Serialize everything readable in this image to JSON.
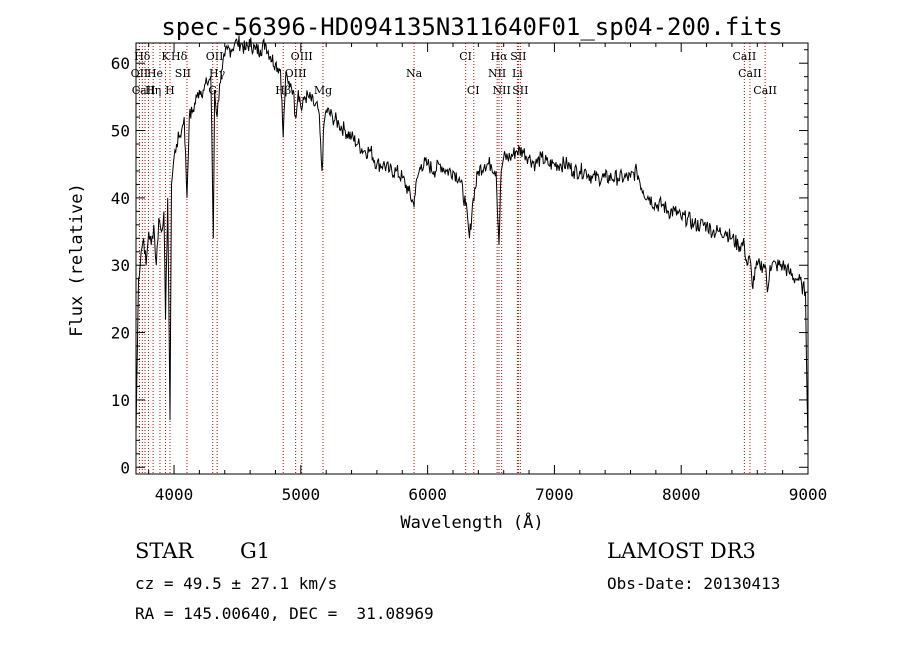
{
  "chart_data": {
    "type": "line",
    "title": "spec-56396-HD094135N311640F01_sp04-200.fits",
    "xlabel": "Wavelength (Å)",
    "ylabel": "Flux (relative)",
    "xlim": [
      3700,
      9000
    ],
    "ylim": [
      -1,
      63
    ],
    "x_ticks": [
      4000,
      5000,
      6000,
      7000,
      8000,
      9000
    ],
    "y_ticks": [
      0,
      10,
      20,
      30,
      40,
      50,
      60
    ],
    "grid": false,
    "series": [
      {
        "x": [
          3700,
          3720,
          3740,
          3760,
          3780,
          3800,
          3820,
          3840,
          3860,
          3880,
          3900,
          3920,
          3933,
          3950,
          3968,
          3980,
          4000,
          4020,
          4040,
          4060,
          4080,
          4102,
          4120,
          4150,
          4180,
          4200,
          4230,
          4260,
          4290,
          4310,
          4320,
          4340,
          4360,
          4380,
          4400,
          4420,
          4450,
          4480,
          4500,
          4530,
          4560,
          4600,
          4640,
          4680,
          4720,
          4760,
          4800,
          4840,
          4861,
          4880,
          4900,
          4920,
          4940,
          4957,
          4980,
          5007,
          5030,
          5060,
          5100,
          5140,
          5167,
          5183,
          5200,
          5250,
          5300,
          5350,
          5400,
          5450,
          5500,
          5550,
          5600,
          5650,
          5700,
          5750,
          5800,
          5850,
          5890,
          5896,
          5920,
          5950,
          6000,
          6050,
          6100,
          6150,
          6200,
          6250,
          6300,
          6330,
          6360,
          6400,
          6450,
          6500,
          6540,
          6563,
          6580,
          6600,
          6650,
          6700,
          6750,
          6800,
          6850,
          6900,
          6950,
          7000,
          7050,
          7100,
          7150,
          7200,
          7250,
          7300,
          7350,
          7400,
          7450,
          7500,
          7550,
          7600,
          7650,
          7700,
          7750,
          7800,
          7850,
          7900,
          7950,
          8000,
          8050,
          8100,
          8150,
          8200,
          8250,
          8300,
          8350,
          8400,
          8450,
          8498,
          8520,
          8542,
          8560,
          8600,
          8620,
          8662,
          8680,
          8700,
          8750,
          8800,
          8850,
          8900,
          8920,
          8950,
          8980,
          9000
        ],
        "y": [
          5,
          28,
          32,
          34,
          30,
          35,
          33,
          36,
          30,
          37,
          35,
          38,
          22,
          40,
          7,
          42,
          46,
          48,
          49,
          50,
          52,
          40,
          52,
          53,
          55,
          56,
          56,
          57,
          58,
          34,
          56,
          52,
          57,
          59,
          61,
          62,
          62,
          63,
          63,
          63,
          62,
          63,
          62,
          62,
          63,
          61,
          60,
          59,
          49,
          58,
          57,
          57,
          56,
          52,
          56,
          53,
          55,
          55,
          54,
          53,
          44,
          51,
          53,
          52,
          51,
          50,
          49,
          48,
          47,
          47,
          45,
          45,
          44,
          44,
          43,
          41,
          39,
          40,
          43,
          45,
          45,
          44,
          45,
          44,
          44,
          43,
          39,
          34,
          40,
          44,
          45,
          45,
          44,
          33,
          44,
          46,
          46,
          47,
          47,
          46,
          45,
          46,
          45,
          45,
          45,
          45,
          44,
          44,
          44,
          43,
          43,
          43,
          43,
          43,
          43,
          43,
          44,
          41,
          40,
          39,
          39,
          38,
          38,
          37,
          37,
          36,
          36,
          36,
          35,
          35,
          35,
          34,
          33,
          33,
          30,
          31,
          27,
          30,
          30,
          30,
          26,
          30,
          30,
          30,
          29,
          28,
          28,
          27,
          26,
          3
        ]
      }
    ],
    "spectral_lines": [
      {
        "label": "Hδ",
        "wavelength": 3750,
        "row": 0
      },
      {
        "label": "K",
        "wavelength": 3933,
        "row": 0
      },
      {
        "label": "Hδ",
        "wavelength": 4040,
        "row": 0
      },
      {
        "label": "OII",
        "wavelength": 4320,
        "row": 0
      },
      {
        "label": "OIII",
        "wavelength": 5007,
        "row": 0
      },
      {
        "label": "CI",
        "wavelength": 6300,
        "row": 0
      },
      {
        "label": "Hα",
        "wavelength": 6563,
        "row": 0
      },
      {
        "label": "SII",
        "wavelength": 6716,
        "row": 0
      },
      {
        "label": "CaII",
        "wavelength": 8498,
        "row": 0
      },
      {
        "label": "OII",
        "wavelength": 3727,
        "row": 1
      },
      {
        "label": "He",
        "wavelength": 3850,
        "row": 1
      },
      {
        "label": "SII",
        "wavelength": 4070,
        "row": 1
      },
      {
        "label": "Hγ",
        "wavelength": 4340,
        "row": 1
      },
      {
        "label": "OIII",
        "wavelength": 4959,
        "row": 1
      },
      {
        "label": "Na",
        "wavelength": 5893,
        "row": 1
      },
      {
        "label": "NII",
        "wavelength": 6548,
        "row": 1
      },
      {
        "label": "Li",
        "wavelength": 6708,
        "row": 1
      },
      {
        "label": "CaII",
        "wavelength": 8542,
        "row": 1
      },
      {
        "label": "CaII",
        "wavelength": 3760,
        "row": 2
      },
      {
        "label": "Hη",
        "wavelength": 3835,
        "row": 2
      },
      {
        "label": "H",
        "wavelength": 3968,
        "row": 2
      },
      {
        "label": "G",
        "wavelength": 4305,
        "row": 2
      },
      {
        "label": "Hβ",
        "wavelength": 4861,
        "row": 2
      },
      {
        "label": "Mg",
        "wavelength": 5175,
        "row": 2
      },
      {
        "label": "CI",
        "wavelength": 6360,
        "row": 2
      },
      {
        "label": "NII",
        "wavelength": 6584,
        "row": 2
      },
      {
        "label": "SII",
        "wavelength": 6731,
        "row": 2
      },
      {
        "label": "CaII",
        "wavelength": 8662,
        "row": 2
      }
    ],
    "line_markers": [
      3727,
      3750,
      3771,
      3798,
      3835,
      3889,
      3933,
      3968,
      4102,
      4305,
      4340,
      4861,
      4959,
      5007,
      5175,
      5893,
      6300,
      6364,
      6548,
      6563,
      6584,
      6708,
      6716,
      6731,
      8498,
      8542,
      8662
    ],
    "marker_color": "#c00000"
  },
  "info": {
    "object_class": "STAR",
    "subclass": "G1",
    "survey": "LAMOST DR3",
    "redshift": "cz = 49.5 ± 27.1 km/s",
    "obs_date": "Obs-Date: 20130413",
    "coords": "RA = 145.00640, DEC =  31.08969"
  }
}
